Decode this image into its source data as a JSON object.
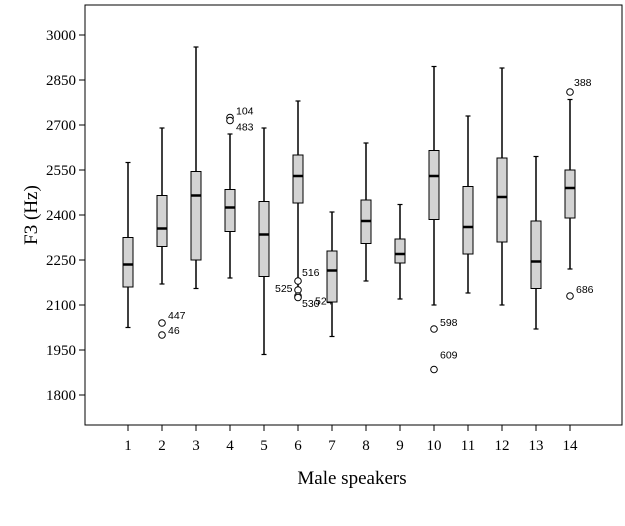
{
  "chart_data": {
    "type": "boxplot",
    "xlabel": "Male speakers",
    "ylabel": "F3 (Hz)",
    "ylim": [
      1700,
      3100
    ],
    "yticks": [
      1800,
      1950,
      2100,
      2250,
      2400,
      2550,
      2700,
      2850,
      3000
    ],
    "grid": false,
    "box_color": "#d3d3d3",
    "categories": [
      "1",
      "2",
      "3",
      "4",
      "5",
      "6",
      "7",
      "8",
      "9",
      "10",
      "11",
      "12",
      "13",
      "14"
    ],
    "boxes": [
      {
        "category": "1",
        "whisker_low": 2025,
        "q1": 2160,
        "median": 2235,
        "q3": 2325,
        "whisker_high": 2575,
        "outliers": []
      },
      {
        "category": "2",
        "whisker_low": 2170,
        "q1": 2295,
        "median": 2355,
        "q3": 2465,
        "whisker_high": 2690,
        "outliers": [
          {
            "value": 2040,
            "label": "447"
          },
          {
            "value": 2000,
            "label": "46"
          }
        ]
      },
      {
        "category": "3",
        "whisker_low": 2155,
        "q1": 2250,
        "median": 2465,
        "q3": 2545,
        "whisker_high": 2960,
        "outliers": []
      },
      {
        "category": "4",
        "whisker_low": 2190,
        "q1": 2345,
        "median": 2425,
        "q3": 2485,
        "whisker_high": 2670,
        "outliers": [
          {
            "value": 2725,
            "label": "104"
          },
          {
            "value": 2715,
            "label": "483"
          }
        ]
      },
      {
        "category": "5",
        "whisker_low": 1935,
        "q1": 2195,
        "median": 2335,
        "q3": 2445,
        "whisker_high": 2690,
        "outliers": []
      },
      {
        "category": "6",
        "whisker_low": 2150,
        "q1": 2440,
        "median": 2530,
        "q3": 2600,
        "whisker_high": 2780,
        "outliers": [
          {
            "value": 2180,
            "label": "516"
          },
          {
            "value": 2150,
            "label": "525"
          },
          {
            "value": 2130,
            "label": "530"
          },
          {
            "value": 2125,
            "label": "524"
          }
        ]
      },
      {
        "category": "7",
        "whisker_low": 1995,
        "q1": 2110,
        "median": 2215,
        "q3": 2280,
        "whisker_high": 2410,
        "outliers": []
      },
      {
        "category": "8",
        "whisker_low": 2180,
        "q1": 2305,
        "median": 2380,
        "q3": 2450,
        "whisker_high": 2640,
        "outliers": []
      },
      {
        "category": "9",
        "whisker_low": 2120,
        "q1": 2240,
        "median": 2270,
        "q3": 2320,
        "whisker_high": 2435,
        "outliers": []
      },
      {
        "category": "10",
        "whisker_low": 2100,
        "q1": 2385,
        "median": 2530,
        "q3": 2615,
        "whisker_high": 2895,
        "outliers": [
          {
            "value": 2020,
            "label": "598"
          },
          {
            "value": 1885,
            "label": "609"
          }
        ]
      },
      {
        "category": "11",
        "whisker_low": 2140,
        "q1": 2270,
        "median": 2360,
        "q3": 2495,
        "whisker_high": 2730,
        "outliers": []
      },
      {
        "category": "12",
        "whisker_low": 2100,
        "q1": 2310,
        "median": 2460,
        "q3": 2590,
        "whisker_high": 2890,
        "outliers": []
      },
      {
        "category": "13",
        "whisker_low": 2020,
        "q1": 2155,
        "median": 2245,
        "q3": 2380,
        "whisker_high": 2595,
        "outliers": []
      },
      {
        "category": "14",
        "whisker_low": 2220,
        "q1": 2390,
        "median": 2490,
        "q3": 2550,
        "whisker_high": 2785,
        "outliers": [
          {
            "value": 2810,
            "label": "388"
          },
          {
            "value": 2130,
            "label": "686"
          }
        ]
      }
    ]
  }
}
